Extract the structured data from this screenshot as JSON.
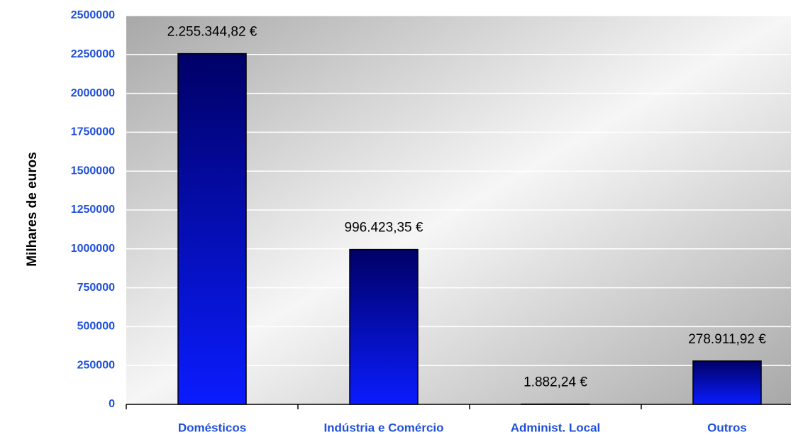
{
  "chart_data": {
    "type": "bar",
    "y_axis_label": "Milhares de euros",
    "categories": [
      "Domésticos",
      "Indústria e Comércio",
      "Administ. Local",
      "Outros"
    ],
    "values": [
      2255344.82,
      996423.35,
      1882.24,
      278911.92
    ],
    "value_labels": [
      "2.255.344,82 €",
      "996.423,35 €",
      "1.882,24 €",
      "278.911,92 €"
    ],
    "ylim": [
      0,
      2500000
    ],
    "yticks": [
      0,
      250000,
      500000,
      750000,
      1000000,
      1250000,
      1500000,
      1750000,
      2000000,
      2250000,
      2500000
    ],
    "grid": true
  }
}
